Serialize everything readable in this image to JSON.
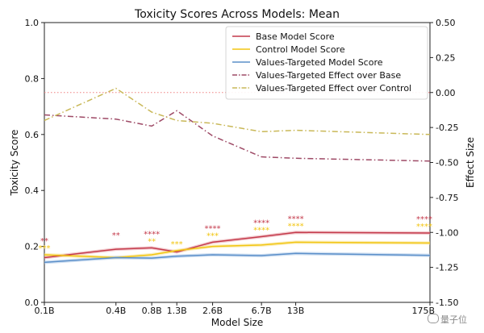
{
  "chart_data": {
    "type": "line",
    "title": "Toxicity Scores Across Models: Mean",
    "xlabel": "Model Size",
    "ylabel": "Toxicity Score",
    "y2label": "Effect Size",
    "x_categories": [
      "0.1B",
      "0.4B",
      "0.8B",
      "1.3B",
      "2.6B",
      "6.7B",
      "13B",
      "175B"
    ],
    "x_tick_labels": [
      "0.1B",
      "0.4B",
      "0.8B",
      "1.3B",
      "2.6B",
      "6.7B",
      "13B",
      "175B"
    ],
    "x_log_values": [
      0.1,
      0.4,
      0.8,
      1.3,
      2.6,
      6.7,
      13,
      175
    ],
    "ylim": [
      0.0,
      1.0
    ],
    "y_ticks": [
      0.0,
      0.2,
      0.4,
      0.6,
      0.8,
      1.0
    ],
    "y_tick_labels": [
      "0.0",
      "0.2",
      "0.4",
      "0.6",
      "0.8",
      "1.0"
    ],
    "y2lim": [
      -1.5,
      0.5
    ],
    "y2_ticks": [
      -1.5,
      -1.25,
      -1.0,
      -0.75,
      -0.5,
      -0.25,
      0.0,
      0.25,
      0.5
    ],
    "y2_tick_labels": [
      "-1.50",
      "-1.25",
      "-1.00",
      "-0.75",
      "-0.50",
      "-0.25",
      "0.00",
      "0.25",
      "0.50"
    ],
    "reference_line_y2": 0.0,
    "legend_position": "top-right",
    "series": [
      {
        "name": "Base Model Score",
        "axis": "left",
        "style": "solid",
        "color": "#c43a4b",
        "values": [
          0.16,
          0.19,
          0.195,
          0.18,
          0.215,
          0.235,
          0.25,
          0.248
        ]
      },
      {
        "name": "Control Model Score",
        "axis": "left",
        "style": "solid",
        "color": "#f2c511",
        "values": [
          0.17,
          0.16,
          0.17,
          0.185,
          0.2,
          0.205,
          0.215,
          0.212
        ]
      },
      {
        "name": "Values-Targeted Model Score",
        "axis": "left",
        "style": "solid",
        "color": "#5b8fc9",
        "values": [
          0.143,
          0.16,
          0.158,
          0.165,
          0.17,
          0.167,
          0.175,
          0.168
        ]
      },
      {
        "name": "Values-Targeted Effect over Base",
        "axis": "right",
        "style": "dashdot",
        "color": "#9e4a66",
        "values": [
          -0.16,
          -0.19,
          -0.24,
          -0.13,
          -0.31,
          -0.46,
          -0.47,
          -0.49
        ]
      },
      {
        "name": "Values-Targeted Effect over Control",
        "axis": "right",
        "style": "dashdot",
        "color": "#c9b858",
        "values": [
          -0.2,
          0.03,
          -0.14,
          -0.2,
          -0.22,
          -0.28,
          -0.27,
          -0.3
        ]
      }
    ],
    "significance_annotations": [
      {
        "x": "0.1B",
        "base": "**",
        "control": "***"
      },
      {
        "x": "0.4B",
        "base": "**",
        "control": ""
      },
      {
        "x": "0.8B",
        "base": "****",
        "control": "**"
      },
      {
        "x": "1.3B",
        "base": "",
        "control": "***"
      },
      {
        "x": "2.6B",
        "base": "****",
        "control": "***"
      },
      {
        "x": "6.7B",
        "base": "****",
        "control": "****"
      },
      {
        "x": "13B",
        "base": "****",
        "control": "****"
      },
      {
        "x": "175B",
        "base": "****",
        "control": "****"
      }
    ]
  },
  "watermark": "量子位"
}
